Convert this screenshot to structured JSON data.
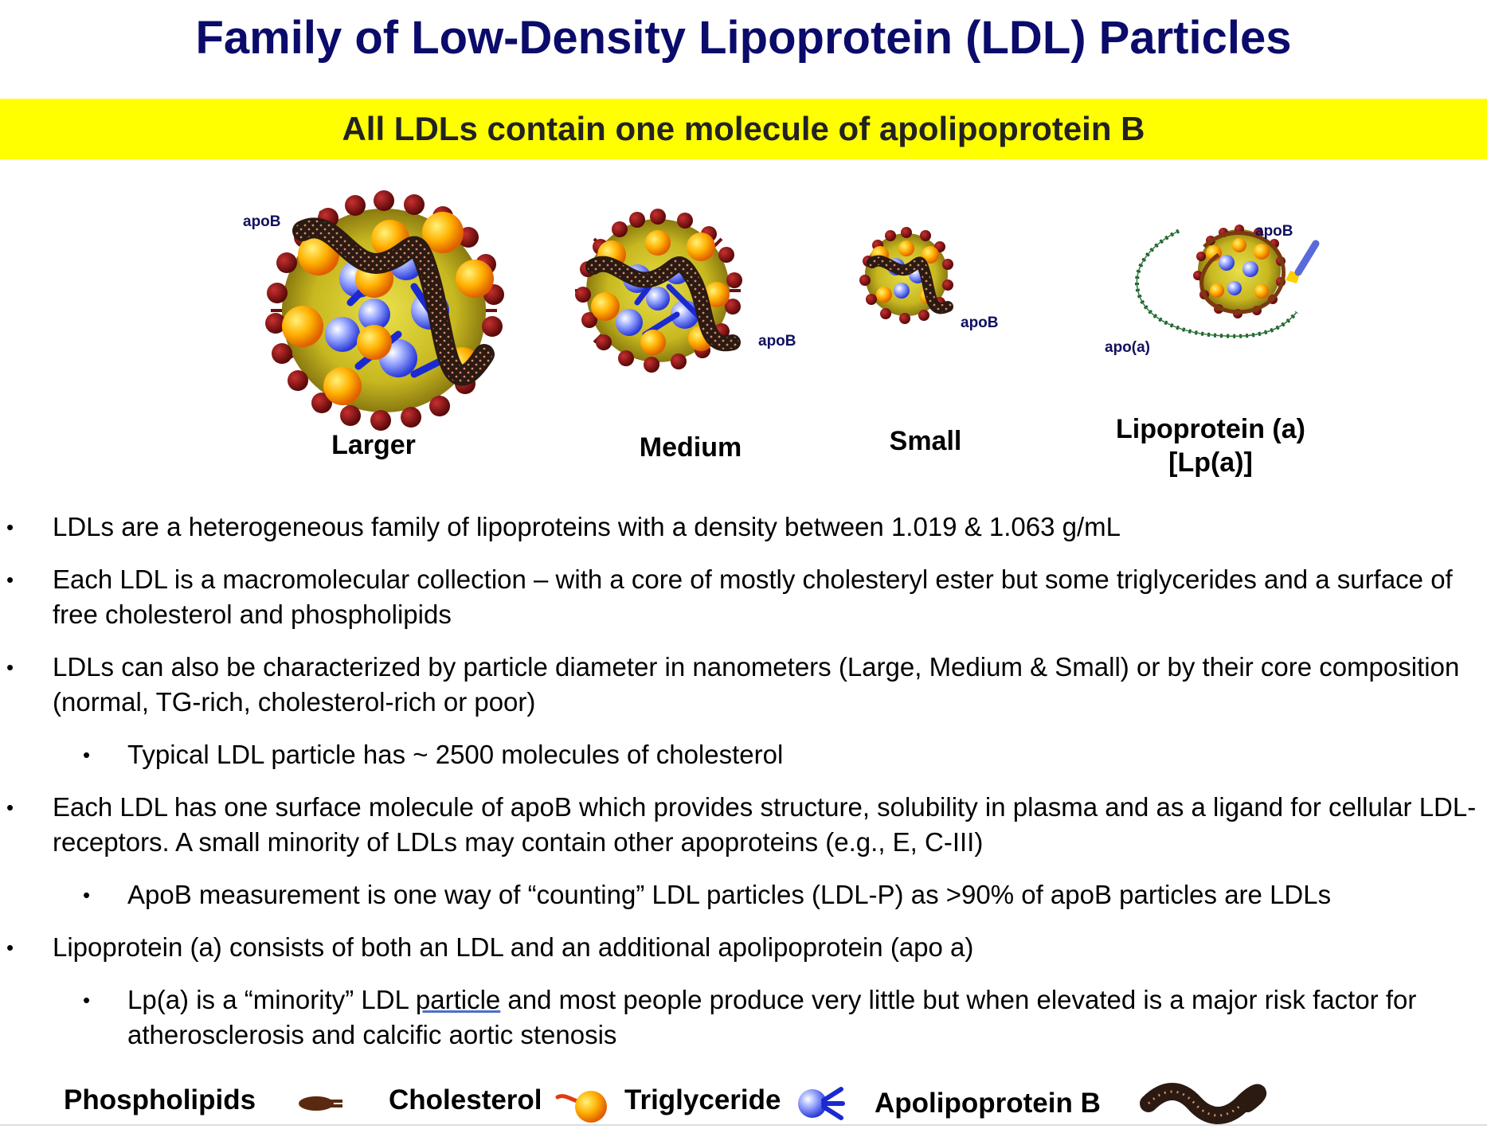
{
  "header": {
    "title": "Family of Low-Density Lipoprotein (LDL) Particles",
    "subtitle": "All LDLs contain one molecule of apolipoprotein B"
  },
  "particles": [
    {
      "label": "Larger",
      "apo_label": "apoB"
    },
    {
      "label": "Medium",
      "apo_label": "apoB"
    },
    {
      "label": "Small",
      "apo_label": "apoB"
    },
    {
      "label_line1": "Lipoprotein (a)",
      "label_line2": "[Lp(a)]",
      "apo_label": "apoB",
      "apo_a_label": "apo(a)"
    }
  ],
  "bullets": [
    {
      "level": 1,
      "text": "LDLs are a heterogeneous family of lipoproteins with a density between 1.019 & 1.063 g/mL"
    },
    {
      "level": 1,
      "text": "Each LDL is a macromolecular collection – with a core of mostly cholesteryl ester but some triglycerides and a surface of free cholesterol and phospholipids"
    },
    {
      "level": 1,
      "text": "LDLs can also be characterized by particle diameter in nanometers (Large, Medium & Small) or by their core composition (normal, TG-rich, cholesterol-rich or poor)"
    },
    {
      "level": 2,
      "text": "Typical LDL particle has ~ 2500 molecules of cholesterol"
    },
    {
      "level": 1,
      "text": "Each LDL has one surface molecule of apoB which provides structure, solubility in plasma and as a ligand for cellular LDL-receptors. A small minority of LDLs may contain other apoproteins (e.g., E, C-III)"
    },
    {
      "level": 2,
      "text": "ApoB measurement is one way of “counting” LDL particles (LDL-P) as >90% of apoB particles are LDLs"
    },
    {
      "level": 1,
      "text": "Lipoprotein (a) consists of both an LDL and an additional apolipoprotein (apo a)"
    },
    {
      "level": 2,
      "text_before": "Lp(a) is a “minority” LDL ",
      "text_underlined": "particle",
      "text_after": " and most people produce very little but  when elevated is a major risk factor for atherosclerosis and calcific aortic stenosis"
    }
  ],
  "bullet_symbol": "•",
  "legend": {
    "phospholipids": "Phospholipids",
    "cholesterol": "Cholesterol",
    "triglyceride": "Triglyceride",
    "apob": "Apolipoprotein B"
  },
  "colors": {
    "title": "#0b0b6b",
    "band": "#ffff00",
    "phospholipid": "#7a1010",
    "cholesterol": "#ffb000",
    "triglyceride": "#2a3bd8",
    "apob": "#2b1a12",
    "apo_a": "#1f5a2a"
  }
}
